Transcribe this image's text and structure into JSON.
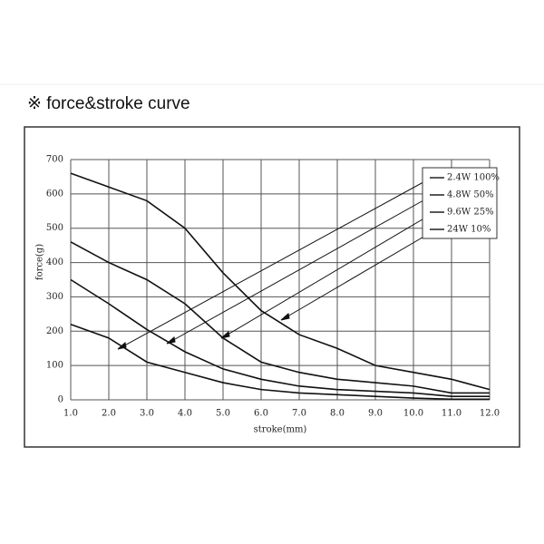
{
  "chart_data": {
    "type": "line",
    "title": "※ force&stroke curve",
    "xlabel": "stroke(mm)",
    "ylabel": "force(g)",
    "x": [
      1,
      2,
      3,
      4,
      5,
      6,
      7,
      8,
      9,
      10,
      11,
      12
    ],
    "series": [
      {
        "name": "2.4W 100%",
        "color": "#111111",
        "values": [
          660,
          620,
          580,
          500,
          370,
          260,
          190,
          150,
          100,
          80,
          60,
          30
        ]
      },
      {
        "name": "4.8W 50%",
        "color": "#111111",
        "values": [
          460,
          400,
          350,
          280,
          180,
          110,
          80,
          60,
          50,
          40,
          20,
          20
        ]
      },
      {
        "name": "9.6W 25%",
        "color": "#111111",
        "values": [
          350,
          280,
          205,
          140,
          90,
          60,
          40,
          30,
          25,
          20,
          10,
          10
        ]
      },
      {
        "name": "24W 10%",
        "color": "#111111",
        "values": [
          220,
          180,
          110,
          80,
          50,
          30,
          20,
          15,
          10,
          5,
          2,
          2
        ]
      }
    ],
    "xlim": [
      1,
      12
    ],
    "xticks": [
      {
        "value": 1,
        "label": "1.0"
      },
      {
        "value": 2,
        "label": "2.0"
      },
      {
        "value": 3,
        "label": "3.0"
      },
      {
        "value": 4,
        "label": "4.0"
      },
      {
        "value": 5,
        "label": "5.0"
      },
      {
        "value": 6,
        "label": "6.0"
      },
      {
        "value": 7,
        "label": "7.0"
      },
      {
        "value": 8,
        "label": "8.0"
      },
      {
        "value": 9,
        "label": "9.0"
      },
      {
        "value": 10,
        "label": "10.0"
      },
      {
        "value": 11,
        "label": "11.0"
      },
      {
        "value": 12,
        "label": "12.0"
      }
    ],
    "ylim": [
      0,
      700
    ],
    "yticks": [
      0,
      100,
      200,
      300,
      400,
      500,
      600,
      700
    ],
    "grid": true,
    "legend": "upper right"
  }
}
